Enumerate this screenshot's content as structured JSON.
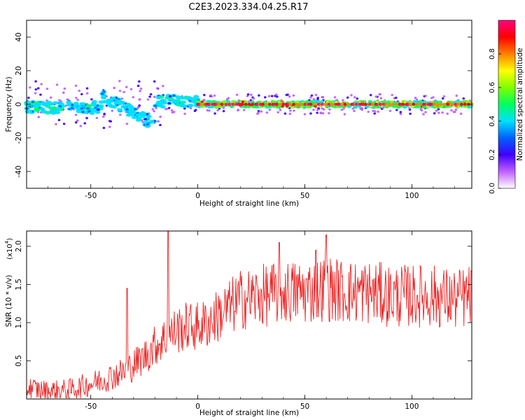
{
  "title": "C2E3.2023.334.04.25.R17",
  "chart_data": [
    {
      "type": "heatmap",
      "xlabel": "Height of straight line (km)",
      "ylabel": "Frequency (Hz)",
      "xlim": [
        -80,
        128
      ],
      "ylim": [
        -50,
        50
      ],
      "x_ticks": [
        -50,
        0,
        50,
        100
      ],
      "y_ticks": [
        -40,
        -20,
        0,
        20,
        40
      ],
      "colorbar": {
        "label": "Normalized spectral amplitude",
        "range": [
          0,
          1
        ],
        "ticks": [
          0.0,
          0.2,
          0.4,
          0.6,
          0.8
        ],
        "colors": [
          "#ffffff",
          "#c060ff",
          "#4000ff",
          "#0060ff",
          "#00e0ff",
          "#00ff60",
          "#80ff00",
          "#ffff00",
          "#ff8000",
          "#ff0000",
          "#ff0080"
        ]
      },
      "features": [
        {
          "x_range": [
            -80,
            -45
          ],
          "freq_center": -2,
          "amplitude_peak": 0.55,
          "description": "broadband blobs"
        },
        {
          "x_range": [
            -45,
            -20
          ],
          "freq_trend": [
            5,
            -12
          ],
          "amplitude_peak": 0.45,
          "description": "descending branch"
        },
        {
          "x_range": [
            -20,
            0
          ],
          "freq_center": 2,
          "amplitude_peak": 0.5
        },
        {
          "x_range": [
            0,
            128
          ],
          "freq_center": 0,
          "amplitude_peak": 0.95,
          "description": "steady carrier line"
        }
      ]
    },
    {
      "type": "line",
      "xlabel": "Height of straight line (km)",
      "ylabel": "SNR (10 * v/v)",
      "scale_label": "(x10",
      "scale_exp": "4",
      "scale_close": ")",
      "xlim": [
        -80,
        128
      ],
      "ylim": [
        0,
        2.2
      ],
      "x_ticks": [
        -50,
        0,
        50,
        100
      ],
      "y_ticks": [
        0.5,
        1.0,
        1.5,
        2.0
      ],
      "y_tick_labels": [
        "0.5",
        "1.0",
        "1.5",
        "2.0"
      ],
      "color": "#ee2222",
      "x": [
        -80,
        -70,
        -60,
        -50,
        -40,
        -35,
        -30,
        -25,
        -20,
        -15,
        -10,
        -5,
        0,
        5,
        10,
        20,
        30,
        40,
        50,
        60,
        70,
        80,
        90,
        100,
        110,
        120,
        128
      ],
      "y": [
        0.15,
        0.1,
        0.12,
        0.2,
        0.3,
        0.35,
        0.45,
        0.55,
        0.7,
        0.8,
        0.9,
        0.95,
        0.95,
        1.0,
        1.1,
        1.3,
        1.35,
        1.4,
        1.4,
        1.45,
        1.4,
        1.4,
        1.35,
        1.35,
        1.35,
        1.3,
        1.35
      ],
      "peaks": [
        [
          -14,
          2.2
        ],
        [
          -33,
          1.45
        ],
        [
          60,
          2.15
        ],
        [
          55,
          1.95
        ],
        [
          38,
          2.05
        ]
      ]
    }
  ]
}
